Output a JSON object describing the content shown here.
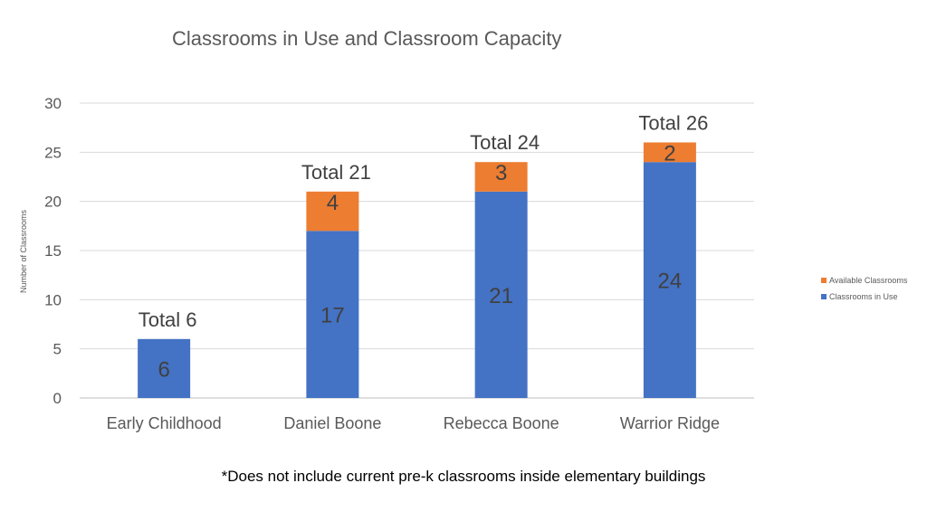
{
  "chart_data": {
    "type": "bar",
    "stacked": true,
    "title": "Classrooms in Use and Classroom Capacity",
    "ylabel": "Number of Classrooms",
    "xlabel": "",
    "ylim": [
      0,
      30
    ],
    "yticks": [
      0,
      5,
      10,
      15,
      20,
      25,
      30
    ],
    "grid": true,
    "legend_position": "right",
    "categories": [
      "Early Childhood",
      "Daniel Boone",
      "Rebecca Boone",
      "Warrior Ridge"
    ],
    "series": [
      {
        "name": "Classrooms in Use",
        "color": "#4472C4",
        "values": [
          6,
          17,
          21,
          24
        ]
      },
      {
        "name": "Available Classrooms",
        "color": "#ED7D31",
        "values": [
          0,
          4,
          3,
          2
        ]
      }
    ],
    "segment_labels": [
      [
        "6",
        "17",
        "21",
        "24"
      ],
      [
        "",
        "4",
        "3",
        "2"
      ]
    ],
    "totals": [
      6,
      21,
      24,
      26
    ],
    "total_labels": [
      "Total 6",
      "Total 21",
      "Total 24",
      "Total 26"
    ]
  },
  "footnote": "*Does not include current pre-k classrooms inside elementary buildings"
}
